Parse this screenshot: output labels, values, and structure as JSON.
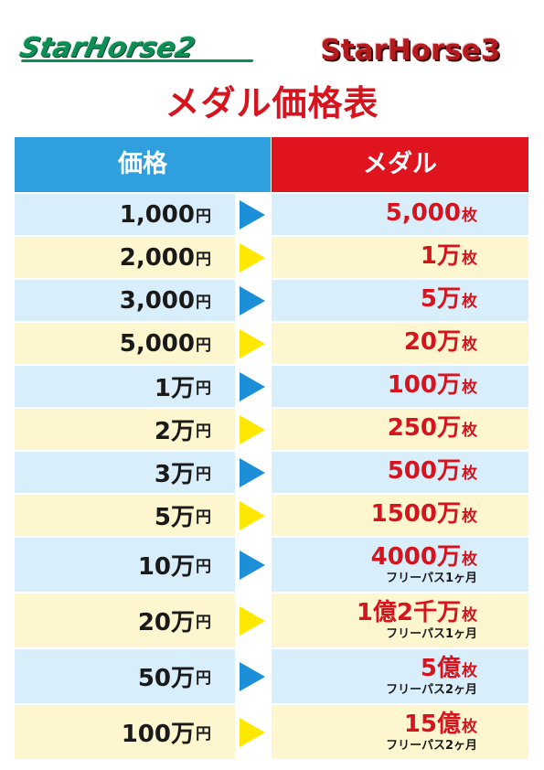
{
  "logos": {
    "left": "StarHorse2",
    "right": "StarHorse3"
  },
  "title": "メダル価格表",
  "table": {
    "header_price": "価格",
    "header_medal": "メダル",
    "colors": {
      "blue_row": "#d9eefb",
      "yellow_row": "#fdf6cf",
      "blue_arrow": "#1c8fd8",
      "yellow_arrow": "#fee800",
      "medal_text": "#d7131e"
    },
    "rows": [
      {
        "price": "1,000",
        "price_unit": "円",
        "medal": "5,000",
        "medal_unit": "枚",
        "note": "",
        "arrow": "blue-arrow-icon"
      },
      {
        "price": "2,000",
        "price_unit": "円",
        "medal": "1万",
        "medal_unit": "枚",
        "note": "",
        "arrow": "yellow-arrow-icon"
      },
      {
        "price": "3,000",
        "price_unit": "円",
        "medal": "5万",
        "medal_unit": "枚",
        "note": "",
        "arrow": "blue-arrow-icon"
      },
      {
        "price": "5,000",
        "price_unit": "円",
        "medal": "20万",
        "medal_unit": "枚",
        "note": "",
        "arrow": "yellow-arrow-icon"
      },
      {
        "price": "1万",
        "price_unit": "円",
        "medal": "100万",
        "medal_unit": "枚",
        "note": "",
        "arrow": "blue-arrow-icon"
      },
      {
        "price": "2万",
        "price_unit": "円",
        "medal": "250万",
        "medal_unit": "枚",
        "note": "",
        "arrow": "yellow-arrow-icon"
      },
      {
        "price": "3万",
        "price_unit": "円",
        "medal": "500万",
        "medal_unit": "枚",
        "note": "",
        "arrow": "blue-arrow-icon"
      },
      {
        "price": "5万",
        "price_unit": "円",
        "medal": "1500万",
        "medal_unit": "枚",
        "note": "",
        "arrow": "yellow-arrow-icon"
      },
      {
        "price": "10万",
        "price_unit": "円",
        "medal": "4000万",
        "medal_unit": "枚",
        "note": "フリーパス1ヶ月",
        "arrow": "blue-arrow-icon"
      },
      {
        "price": "20万",
        "price_unit": "円",
        "medal": "1億2千万",
        "medal_unit": "枚",
        "note": "フリーパス1ヶ月",
        "arrow": "yellow-arrow-icon"
      },
      {
        "price": "50万",
        "price_unit": "円",
        "medal": "5億",
        "medal_unit": "枚",
        "note": "フリーパス2ヶ月",
        "arrow": "blue-arrow-icon"
      },
      {
        "price": "100万",
        "price_unit": "円",
        "medal": "15億",
        "medal_unit": "枚",
        "note": "フリーパス2ヶ月",
        "arrow": "yellow-arrow-icon"
      }
    ]
  }
}
